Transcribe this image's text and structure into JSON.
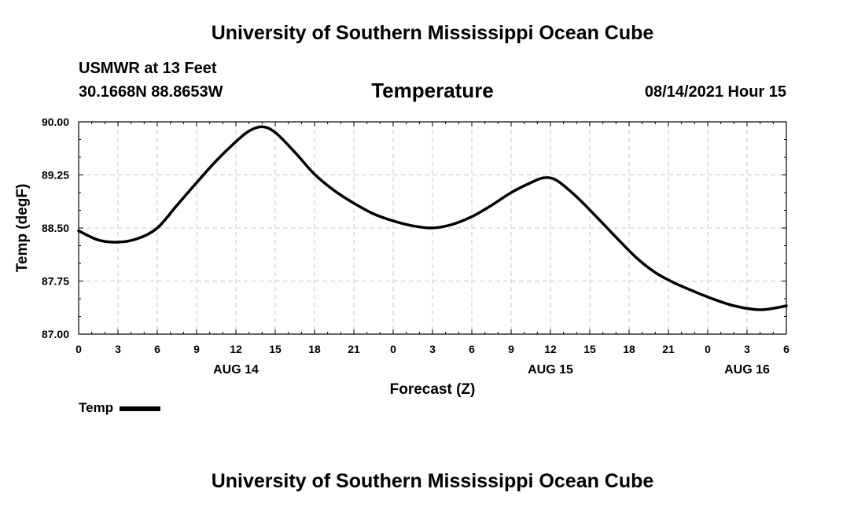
{
  "header": {
    "top_title": "University of Southern Mississippi Ocean Cube",
    "station": "USMWR at 13 Feet",
    "coordinates": "30.1668N  88.8653W",
    "chart_title": "Temperature",
    "datetime": "08/14/2021 Hour 15"
  },
  "footer": {
    "bottom_title": "University of Southern Mississippi Ocean Cube"
  },
  "legend": {
    "label": "Temp",
    "color": "#000000"
  },
  "chart_data": {
    "type": "line",
    "title": "Temperature",
    "xlabel": "Forecast (Z)",
    "ylabel": "Temp (degF)",
    "xlim": [
      0,
      54
    ],
    "ylim": [
      87.0,
      90.0
    ],
    "grid": true,
    "legend_position": "bottom-left",
    "x_ticks": [
      0,
      3,
      6,
      9,
      12,
      15,
      18,
      21,
      24,
      27,
      30,
      33,
      36,
      39,
      42,
      45,
      48,
      51,
      54
    ],
    "x_tick_labels": [
      "0",
      "3",
      "6",
      "9",
      "12",
      "15",
      "18",
      "21",
      "0",
      "3",
      "6",
      "9",
      "12",
      "15",
      "18",
      "21",
      "0",
      "3",
      "6"
    ],
    "y_ticks": [
      87.0,
      87.75,
      88.5,
      89.25,
      90.0
    ],
    "y_tick_labels": [
      "87.00",
      "87.75",
      "88.50",
      "89.25",
      "90.00"
    ],
    "date_labels": [
      {
        "x": 12,
        "label": "AUG 14"
      },
      {
        "x": 36,
        "label": "AUG 15"
      },
      {
        "x": 51,
        "label": "AUG 16"
      }
    ],
    "series": [
      {
        "name": "Temp",
        "x": [
          0,
          1.5,
          3,
          4.5,
          6,
          7.5,
          9,
          10.5,
          12,
          13,
          14,
          15,
          16.5,
          18,
          19.5,
          21,
          22.5,
          24,
          25.5,
          27,
          28.5,
          30,
          31.5,
          33,
          34.5,
          35.5,
          36.5,
          38,
          39.5,
          41,
          42.5,
          44,
          45.5,
          47,
          48.5,
          50,
          51.5,
          52.5,
          54
        ],
        "values": [
          88.46,
          88.33,
          88.3,
          88.35,
          88.5,
          88.82,
          89.14,
          89.45,
          89.72,
          89.87,
          89.93,
          89.85,
          89.57,
          89.26,
          89.03,
          88.85,
          88.7,
          88.6,
          88.53,
          88.5,
          88.55,
          88.66,
          88.82,
          89.0,
          89.14,
          89.21,
          89.17,
          88.94,
          88.66,
          88.37,
          88.09,
          87.87,
          87.72,
          87.6,
          87.49,
          87.4,
          87.35,
          87.35,
          87.4
        ]
      }
    ]
  }
}
